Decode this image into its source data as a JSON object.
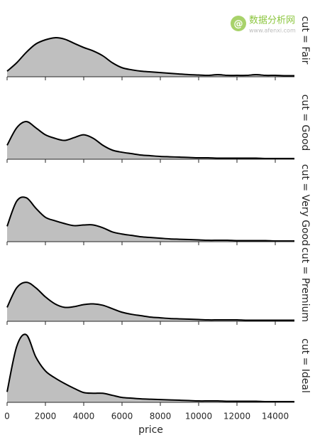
{
  "watermark": {
    "title": "数据分析网",
    "url": "www.afenxi.com"
  },
  "chart_data": [
    {
      "type": "area",
      "title": "cut = Fair",
      "color": "#bfbfbf",
      "line_color": "#000000",
      "x": [
        0,
        500,
        1000,
        1500,
        2000,
        2500,
        3000,
        3500,
        4000,
        4500,
        5000,
        5500,
        6000,
        6500,
        7000,
        7500,
        8000,
        8500,
        9000,
        9500,
        10000,
        10500,
        11000,
        11500,
        12000,
        12500,
        13000,
        13500,
        14000,
        14500,
        15000
      ],
      "values": [
        8,
        20,
        35,
        47,
        53,
        56,
        54,
        48,
        42,
        37,
        30,
        20,
        13,
        10,
        8,
        7,
        6,
        5,
        4,
        3,
        2.5,
        2,
        3,
        2,
        2,
        2,
        3,
        2,
        2,
        1.5,
        1.5
      ],
      "xlim": [
        0,
        15000
      ],
      "xticks": [
        0,
        2000,
        4000,
        6000,
        8000,
        10000,
        12000,
        14000
      ],
      "ylim": [
        0,
        105
      ]
    },
    {
      "type": "area",
      "title": "cut = Good",
      "color": "#bfbfbf",
      "line_color": "#000000",
      "x": [
        0,
        500,
        1000,
        1500,
        2000,
        2500,
        3000,
        3500,
        4000,
        4500,
        5000,
        5500,
        6000,
        6500,
        7000,
        7500,
        8000,
        8500,
        9000,
        9500,
        10000,
        10500,
        11000,
        11500,
        12000,
        12500,
        13000,
        13500,
        14000,
        14500,
        15000
      ],
      "values": [
        20,
        45,
        54,
        45,
        35,
        30,
        27,
        31,
        35,
        30,
        20,
        13,
        10,
        8,
        6,
        5,
        4,
        3.5,
        3,
        2.5,
        2,
        2,
        1.5,
        1.5,
        1.5,
        1.5,
        1.5,
        1,
        1,
        1,
        1
      ],
      "xlim": [
        0,
        15000
      ],
      "xticks": [
        0,
        2000,
        4000,
        6000,
        8000,
        10000,
        12000,
        14000
      ],
      "ylim": [
        0,
        105
      ]
    },
    {
      "type": "area",
      "title": "cut = Very Good",
      "color": "#bfbfbf",
      "line_color": "#000000",
      "x": [
        0,
        500,
        1000,
        1500,
        2000,
        2500,
        3000,
        3500,
        4000,
        4500,
        5000,
        5500,
        6000,
        6500,
        7000,
        7500,
        8000,
        8500,
        9000,
        9500,
        10000,
        10500,
        11000,
        11500,
        12000,
        12500,
        13000,
        13500,
        14000,
        14500,
        15000
      ],
      "values": [
        22,
        58,
        63,
        48,
        35,
        30,
        26,
        23,
        24,
        24,
        20,
        14,
        11,
        9,
        7,
        6,
        5,
        4,
        3.5,
        3,
        2.5,
        2,
        2,
        2,
        1.5,
        1.5,
        1.5,
        1.5,
        1,
        1,
        1
      ],
      "xlim": [
        0,
        15000
      ],
      "xticks": [
        0,
        2000,
        4000,
        6000,
        8000,
        10000,
        12000,
        14000
      ],
      "ylim": [
        0,
        105
      ]
    },
    {
      "type": "area",
      "title": "cut = Premium",
      "color": "#bfbfbf",
      "line_color": "#000000",
      "x": [
        0,
        500,
        1000,
        1500,
        2000,
        2500,
        3000,
        3500,
        4000,
        4500,
        5000,
        5500,
        6000,
        6500,
        7000,
        7500,
        8000,
        8500,
        9000,
        9500,
        10000,
        10500,
        11000,
        11500,
        12000,
        12500,
        13000,
        13500,
        14000,
        14500,
        15000
      ],
      "values": [
        20,
        48,
        56,
        48,
        35,
        25,
        20,
        21,
        24,
        25,
        23,
        18,
        13,
        10,
        8,
        6,
        5,
        4,
        3.5,
        3,
        2.5,
        2,
        2,
        2,
        2,
        1.5,
        1.5,
        1.5,
        1.5,
        1.5,
        1.5
      ],
      "xlim": [
        0,
        15000
      ],
      "xticks": [
        0,
        2000,
        4000,
        6000,
        8000,
        10000,
        12000,
        14000
      ],
      "ylim": [
        0,
        105
      ]
    },
    {
      "type": "area",
      "title": "cut = Ideal",
      "color": "#bfbfbf",
      "line_color": "#000000",
      "xlabel": "price",
      "x": [
        0,
        500,
        1000,
        1500,
        2000,
        2500,
        3000,
        3500,
        4000,
        4500,
        5000,
        5500,
        6000,
        6500,
        7000,
        7500,
        8000,
        8500,
        9000,
        9500,
        10000,
        10500,
        11000,
        11500,
        12000,
        12500,
        13000,
        13500,
        14000,
        14500,
        15000
      ],
      "values": [
        15,
        80,
        97,
        65,
        45,
        35,
        27,
        20,
        14,
        13,
        13,
        10,
        7,
        6,
        5,
        4.5,
        4,
        3.5,
        3,
        2.5,
        2,
        2,
        2,
        1.5,
        1.5,
        1.5,
        1.5,
        1,
        1,
        1,
        1
      ],
      "xlim": [
        0,
        15000
      ],
      "xticks": [
        0,
        2000,
        4000,
        6000,
        8000,
        10000,
        12000,
        14000
      ],
      "ylim": [
        0,
        105
      ]
    }
  ]
}
